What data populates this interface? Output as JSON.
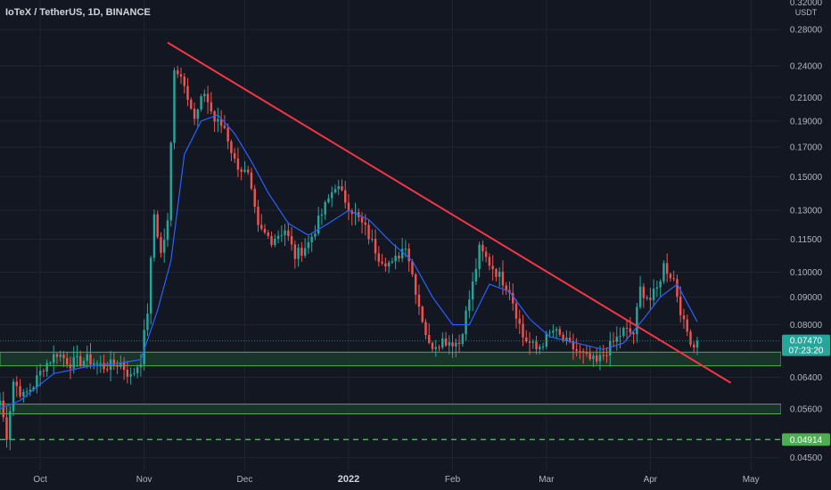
{
  "chart_data": {
    "type": "candlestick",
    "title": "IoTeX / TetherUS, 1D, BINANCE",
    "y_unit": "USDT",
    "y_scale": "log",
    "y_range": [
      0.0431,
      0.3175
    ],
    "y_ticks": [
      0.28,
      0.24,
      0.21,
      0.19,
      0.17,
      0.15,
      0.13,
      0.115,
      0.1,
      0.09,
      0.08,
      0.064,
      0.056,
      0.0455
    ],
    "y_tick_labels": [
      "0.28000",
      "0.24000",
      "0.21000",
      "0.19000",
      "0.17000",
      "0.15000",
      "0.13000",
      "0.11500",
      "0.10000",
      "0.09000",
      "0.08000",
      "0.06400",
      "0.05600",
      "0.04500"
    ],
    "y_top_label": "0.32000",
    "x_range": [
      "2021-09-19",
      "2022-05-10"
    ],
    "x_ticks": [
      {
        "date": "2021-10-01",
        "label": "Oct",
        "bold": false
      },
      {
        "date": "2021-11-01",
        "label": "Nov",
        "bold": false
      },
      {
        "date": "2021-12-01",
        "label": "Dec",
        "bold": false
      },
      {
        "date": "2022-01-01",
        "label": "2022",
        "bold": true
      },
      {
        "date": "2022-02-01",
        "label": "Feb",
        "bold": false
      },
      {
        "date": "2022-03-01",
        "label": "Mar",
        "bold": false
      },
      {
        "date": "2022-04-01",
        "label": "Apr",
        "bold": false
      },
      {
        "date": "2022-05-01",
        "label": "May",
        "bold": false
      }
    ],
    "grid": true,
    "colors": {
      "background": "#131722",
      "grid": "#1f2433",
      "up": "#26a69a",
      "down": "#ef5350",
      "ma": "#2962ff",
      "trendline": "#f23645",
      "zone_fill": "#1b3a2a",
      "zone_border": "#4caf50",
      "dashed": "#4caf50",
      "price_badge": "#26a69a"
    },
    "moving_average": true,
    "ohlc_anchors": [
      {
        "d": "2021-09-19",
        "p": 0.058
      },
      {
        "d": "2021-09-21",
        "p": 0.05
      },
      {
        "d": "2021-09-23",
        "p": 0.063
      },
      {
        "d": "2021-09-26",
        "p": 0.059
      },
      {
        "d": "2021-09-29",
        "p": 0.062
      },
      {
        "d": "2021-10-02",
        "p": 0.067
      },
      {
        "d": "2021-10-06",
        "p": 0.071
      },
      {
        "d": "2021-10-10",
        "p": 0.068
      },
      {
        "d": "2021-10-15",
        "p": 0.069
      },
      {
        "d": "2021-10-20",
        "p": 0.067
      },
      {
        "d": "2021-10-25",
        "p": 0.068
      },
      {
        "d": "2021-10-28",
        "p": 0.064
      },
      {
        "d": "2021-10-31",
        "p": 0.069
      },
      {
        "d": "2021-11-02",
        "p": 0.085
      },
      {
        "d": "2021-11-04",
        "p": 0.128
      },
      {
        "d": "2021-11-06",
        "p": 0.108
      },
      {
        "d": "2021-11-08",
        "p": 0.123
      },
      {
        "d": "2021-11-10",
        "p": 0.24
      },
      {
        "d": "2021-11-13",
        "p": 0.225
      },
      {
        "d": "2021-11-16",
        "p": 0.19
      },
      {
        "d": "2021-11-19",
        "p": 0.215
      },
      {
        "d": "2021-11-22",
        "p": 0.19
      },
      {
        "d": "2021-11-25",
        "p": 0.185
      },
      {
        "d": "2021-11-28",
        "p": 0.16
      },
      {
        "d": "2021-12-02",
        "p": 0.15
      },
      {
        "d": "2021-12-05",
        "p": 0.12
      },
      {
        "d": "2021-12-09",
        "p": 0.115
      },
      {
        "d": "2021-12-13",
        "p": 0.12
      },
      {
        "d": "2021-12-16",
        "p": 0.107
      },
      {
        "d": "2021-12-20",
        "p": 0.113
      },
      {
        "d": "2021-12-24",
        "p": 0.128
      },
      {
        "d": "2021-12-28",
        "p": 0.145
      },
      {
        "d": "2022-01-01",
        "p": 0.133
      },
      {
        "d": "2022-01-06",
        "p": 0.12
      },
      {
        "d": "2022-01-10",
        "p": 0.107
      },
      {
        "d": "2022-01-14",
        "p": 0.103
      },
      {
        "d": "2022-01-18",
        "p": 0.113
      },
      {
        "d": "2022-01-22",
        "p": 0.087
      },
      {
        "d": "2022-01-25",
        "p": 0.073
      },
      {
        "d": "2022-01-29",
        "p": 0.075
      },
      {
        "d": "2022-02-03",
        "p": 0.074
      },
      {
        "d": "2022-02-07",
        "p": 0.095
      },
      {
        "d": "2022-02-09",
        "p": 0.11
      },
      {
        "d": "2022-02-13",
        "p": 0.102
      },
      {
        "d": "2022-02-18",
        "p": 0.093
      },
      {
        "d": "2022-02-22",
        "p": 0.076
      },
      {
        "d": "2022-02-26",
        "p": 0.072
      },
      {
        "d": "2022-03-03",
        "p": 0.078
      },
      {
        "d": "2022-03-07",
        "p": 0.074
      },
      {
        "d": "2022-03-12",
        "p": 0.07
      },
      {
        "d": "2022-03-16",
        "p": 0.068
      },
      {
        "d": "2022-03-20",
        "p": 0.073
      },
      {
        "d": "2022-03-24",
        "p": 0.078
      },
      {
        "d": "2022-03-27",
        "p": 0.077
      },
      {
        "d": "2022-03-29",
        "p": 0.093
      },
      {
        "d": "2022-04-01",
        "p": 0.089
      },
      {
        "d": "2022-04-03",
        "p": 0.093
      },
      {
        "d": "2022-04-05",
        "p": 0.103
      },
      {
        "d": "2022-04-08",
        "p": 0.097
      },
      {
        "d": "2022-04-11",
        "p": 0.08
      },
      {
        "d": "2022-04-14",
        "p": 0.073
      },
      {
        "d": "2022-04-15",
        "p": 0.0747
      }
    ],
    "ma_points": [
      {
        "d": "2021-09-19",
        "p": 0.056
      },
      {
        "d": "2021-09-25",
        "p": 0.058
      },
      {
        "d": "2021-10-05",
        "p": 0.065
      },
      {
        "d": "2021-10-15",
        "p": 0.067
      },
      {
        "d": "2021-10-25",
        "p": 0.068
      },
      {
        "d": "2021-10-31",
        "p": 0.069
      },
      {
        "d": "2021-11-05",
        "p": 0.085
      },
      {
        "d": "2021-11-09",
        "p": 0.105
      },
      {
        "d": "2021-11-13",
        "p": 0.165
      },
      {
        "d": "2021-11-18",
        "p": 0.19
      },
      {
        "d": "2021-11-23",
        "p": 0.195
      },
      {
        "d": "2021-11-28",
        "p": 0.18
      },
      {
        "d": "2021-12-03",
        "p": 0.16
      },
      {
        "d": "2021-12-08",
        "p": 0.14
      },
      {
        "d": "2021-12-14",
        "p": 0.123
      },
      {
        "d": "2021-12-20",
        "p": 0.117
      },
      {
        "d": "2021-12-26",
        "p": 0.123
      },
      {
        "d": "2022-01-01",
        "p": 0.13
      },
      {
        "d": "2022-01-07",
        "p": 0.125
      },
      {
        "d": "2022-01-14",
        "p": 0.113
      },
      {
        "d": "2022-01-20",
        "p": 0.105
      },
      {
        "d": "2022-01-26",
        "p": 0.09
      },
      {
        "d": "2022-02-01",
        "p": 0.08
      },
      {
        "d": "2022-02-06",
        "p": 0.08
      },
      {
        "d": "2022-02-12",
        "p": 0.095
      },
      {
        "d": "2022-02-18",
        "p": 0.092
      },
      {
        "d": "2022-02-24",
        "p": 0.082
      },
      {
        "d": "2022-03-02",
        "p": 0.076
      },
      {
        "d": "2022-03-10",
        "p": 0.074
      },
      {
        "d": "2022-03-18",
        "p": 0.072
      },
      {
        "d": "2022-03-24",
        "p": 0.074
      },
      {
        "d": "2022-03-30",
        "p": 0.082
      },
      {
        "d": "2022-04-04",
        "p": 0.09
      },
      {
        "d": "2022-04-09",
        "p": 0.095
      },
      {
        "d": "2022-04-15",
        "p": 0.081
      }
    ],
    "trendline": {
      "start": {
        "d": "2021-11-08",
        "p": 0.265
      },
      "end": {
        "d": "2022-04-25",
        "p": 0.0625
      }
    },
    "support_zones": [
      {
        "top": 0.0712,
        "bottom": 0.0672
      },
      {
        "top": 0.0571,
        "bottom": 0.0548
      }
    ],
    "dashed_level": 0.04914,
    "last_price_label": "0.07470",
    "countdown_label": "07:23:20",
    "dashed_level_label": "0.04914",
    "axis_labels": {
      "x": "",
      "y": ""
    },
    "annotations": []
  }
}
